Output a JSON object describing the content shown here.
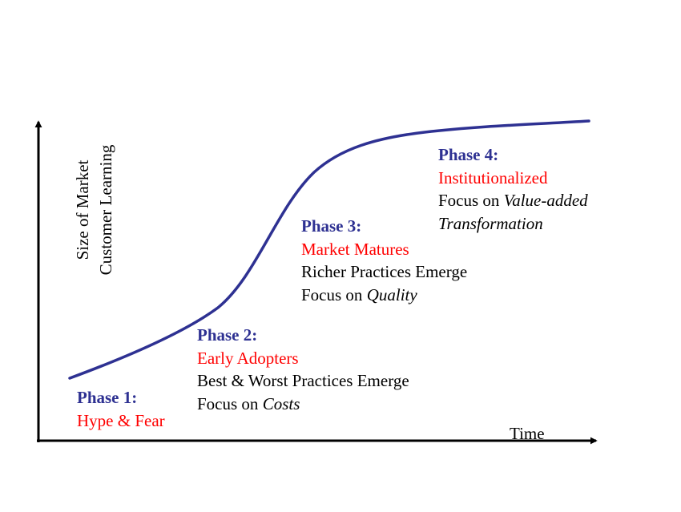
{
  "colors": {
    "curve": "#2e3192",
    "phase_title": "#2e3192",
    "phase_name": "#ff0000",
    "axis": "#000000",
    "text": "#000000"
  },
  "axes": {
    "y_label_line1": "Size of Market",
    "y_label_line2": "Customer Learning",
    "x_label": "Time"
  },
  "phases": [
    {
      "title": "Phase 1:",
      "name": "Hype & Fear",
      "lines": []
    },
    {
      "title": "Phase 2:",
      "name": "Early Adopters",
      "lines": [
        {
          "text": "Best & Worst Practices Emerge",
          "emph": ""
        },
        {
          "text": "Focus on ",
          "emph": "Costs"
        }
      ]
    },
    {
      "title": "Phase 3:",
      "name": "Market Matures",
      "lines": [
        {
          "text": "Richer Practices Emerge",
          "emph": ""
        },
        {
          "text": "Focus on ",
          "emph": "Quality"
        }
      ]
    },
    {
      "title": "Phase 4:",
      "name": "Institutionalized",
      "lines": [
        {
          "text": "Focus on ",
          "emph": "Value-added"
        },
        {
          "text": "",
          "emph": "Transformation"
        }
      ]
    }
  ]
}
